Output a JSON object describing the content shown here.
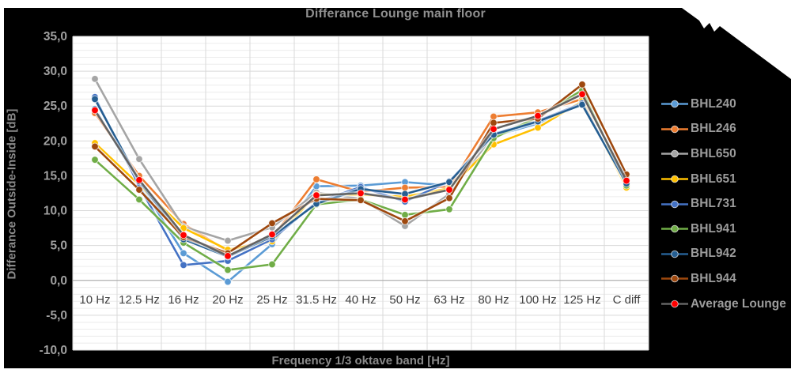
{
  "chart_data": {
    "type": "line",
    "title": "Differance Lounge main floor",
    "xlabel": "Frequency 1/3 oktave band [Hz]",
    "ylabel": "Differance Outside-Inside [dB]",
    "ylim": [
      -10,
      35
    ],
    "ytick_step": 5,
    "ytick_labels": [
      "35,0",
      "30,0",
      "25,0",
      "20,0",
      "15,0",
      "10,0",
      "5,0",
      "0,0",
      "-5,0",
      "-10,0"
    ],
    "grid": "horizontal major every 5 dB + minor every 1 dB, vertical lines at category boundaries",
    "legend_position": "right",
    "categories": [
      "10 Hz",
      "12.5 Hz",
      "16 Hz",
      "20 Hz",
      "25 Hz",
      "31.5 Hz",
      "40 Hz",
      "50 Hz",
      "63 Hz",
      "80 Hz",
      "100 Hz",
      "125 Hz",
      "C diff"
    ],
    "series": [
      {
        "name": "BHL240",
        "line_color": "#5B9BD5",
        "marker_color": "#5B9BD5",
        "values": [
          24.6,
          14.0,
          3.9,
          -0.2,
          5.2,
          13.5,
          13.6,
          14.1,
          13.6,
          20.7,
          22.5,
          25.5,
          14.0
        ]
      },
      {
        "name": "BHL246",
        "line_color": "#ED7D31",
        "marker_color": "#ED7D31",
        "values": [
          24.0,
          15.0,
          8.1,
          4.2,
          6.1,
          14.5,
          12.7,
          13.3,
          13.4,
          23.5,
          24.1,
          26.0,
          15.0
        ]
      },
      {
        "name": "BHL650",
        "line_color": "#A5A5A5",
        "marker_color": "#A5A5A5",
        "values": [
          28.9,
          17.4,
          7.7,
          5.7,
          7.6,
          12.6,
          11.7,
          7.8,
          12.4,
          20.9,
          23.3,
          26.9,
          14.5
        ]
      },
      {
        "name": "BHL651",
        "line_color": "#FFC000",
        "marker_color": "#FFC000",
        "values": [
          19.7,
          13.7,
          7.5,
          4.4,
          5.6,
          12.3,
          12.3,
          12.0,
          13.2,
          19.5,
          21.9,
          25.7,
          13.3
        ]
      },
      {
        "name": "BHL731",
        "line_color": "#4472C4",
        "marker_color": "#4472C4",
        "values": [
          26.3,
          13.5,
          2.2,
          2.8,
          5.9,
          11.2,
          13.4,
          11.3,
          14.2,
          21.0,
          22.9,
          25.4,
          13.8
        ]
      },
      {
        "name": "BHL941",
        "line_color": "#70AD47",
        "marker_color": "#70AD47",
        "values": [
          17.3,
          11.6,
          5.4,
          1.5,
          2.3,
          10.9,
          11.6,
          9.4,
          10.2,
          20.4,
          23.4,
          27.3,
          13.6
        ]
      },
      {
        "name": "BHL942",
        "line_color": "#255E91",
        "marker_color": "#255E91",
        "values": [
          26.0,
          14.2,
          5.9,
          3.4,
          6.3,
          11.0,
          13.1,
          12.4,
          14.1,
          20.9,
          22.8,
          25.2,
          13.9
        ]
      },
      {
        "name": "BHL944",
        "line_color": "#9E480E",
        "marker_color": "#9E480E",
        "values": [
          19.2,
          13.0,
          6.2,
          3.9,
          8.2,
          11.7,
          11.5,
          8.5,
          11.8,
          22.6,
          23.2,
          28.1,
          15.2
        ]
      },
      {
        "name": "Average Lounge",
        "line_color": "#636363",
        "marker_color": "#FF0000",
        "values": [
          24.4,
          14.4,
          6.5,
          3.5,
          6.6,
          12.2,
          12.5,
          11.6,
          13.0,
          21.7,
          23.6,
          26.7,
          14.3
        ]
      }
    ],
    "colors": {
      "chart_background": "#000000",
      "plot_background": "#FFFFFF",
      "major_gridline": "#D9D9D9",
      "minor_gridline": "#ECECEC",
      "zero_axis_line": "#A6A6A6",
      "tick_label": "#A0A0A0",
      "category_label": "#3F3F3F",
      "title_text": "#8F8F8F"
    }
  }
}
